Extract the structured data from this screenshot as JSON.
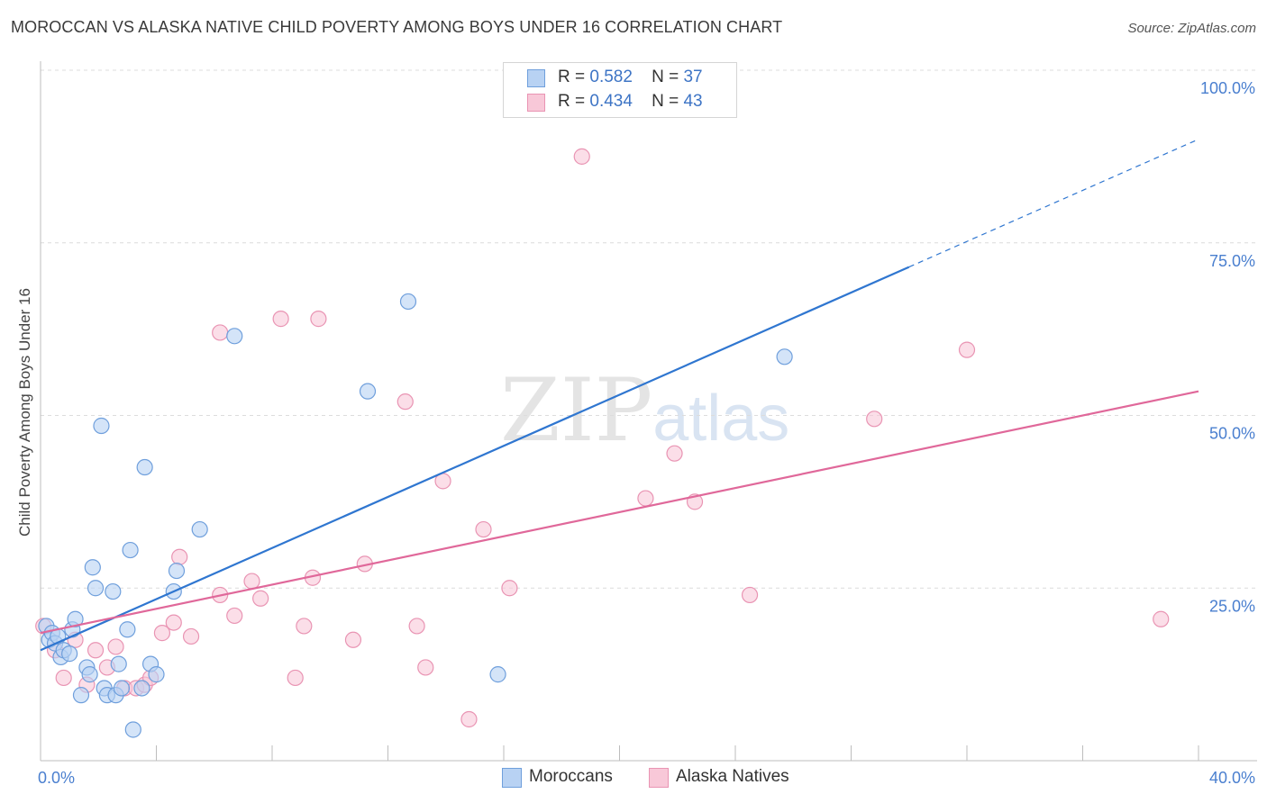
{
  "title": "MOROCCAN VS ALASKA NATIVE CHILD POVERTY AMONG BOYS UNDER 16 CORRELATION CHART",
  "source": "Source: ZipAtlas.com",
  "watermark": {
    "zip": "ZIP",
    "atlas": "atlas"
  },
  "legend_top": {
    "rows": [
      {
        "r_label": "R =",
        "r_value": "0.582",
        "n_label": "N =",
        "n_value": "37"
      },
      {
        "r_label": "R =",
        "r_value": "0.434",
        "n_label": "N =",
        "n_value": "43"
      }
    ]
  },
  "legend_bottom": {
    "moroccans": "Moroccans",
    "alaska": "Alaska Natives"
  },
  "colors": {
    "blue_fill": "#b8d2f3",
    "blue_stroke": "#6f9fdc",
    "blue_line": "#2f76d0",
    "pink_fill": "#f8c8d8",
    "pink_stroke": "#e994b3",
    "pink_line": "#e0689a",
    "tick_text": "#4a7fcf"
  },
  "chart_data": {
    "type": "scatter",
    "title": "MOROCCAN VS ALASKA NATIVE CHILD POVERTY AMONG BOYS UNDER 16 CORRELATION CHART",
    "xlabel": "",
    "ylabel": "Child Poverty Among Boys Under 16",
    "xlim": [
      0,
      40
    ],
    "ylim": [
      0,
      100
    ],
    "x_tick_labels": [
      "0.0%",
      "40.0%"
    ],
    "y_tick_labels": [
      "25.0%",
      "50.0%",
      "75.0%",
      "100.0%"
    ],
    "y_ticks": [
      25,
      50,
      75,
      100
    ],
    "grid": true,
    "legend_placement": "top-center",
    "series": [
      {
        "name": "Moroccans",
        "points": [
          [
            0.2,
            19.5
          ],
          [
            0.3,
            17.5
          ],
          [
            0.4,
            18.5
          ],
          [
            0.5,
            17.0
          ],
          [
            0.6,
            18.0
          ],
          [
            0.7,
            15.0
          ],
          [
            0.8,
            16.0
          ],
          [
            1.0,
            15.5
          ],
          [
            1.1,
            19.0
          ],
          [
            1.2,
            20.5
          ],
          [
            1.4,
            9.5
          ],
          [
            1.6,
            13.5
          ],
          [
            1.7,
            12.5
          ],
          [
            1.8,
            28.0
          ],
          [
            1.9,
            25.0
          ],
          [
            2.1,
            48.5
          ],
          [
            2.2,
            10.5
          ],
          [
            2.3,
            9.5
          ],
          [
            2.5,
            24.5
          ],
          [
            2.6,
            9.5
          ],
          [
            2.7,
            14.0
          ],
          [
            2.8,
            10.5
          ],
          [
            3.0,
            19.0
          ],
          [
            3.1,
            30.5
          ],
          [
            3.2,
            4.5
          ],
          [
            3.5,
            10.5
          ],
          [
            3.6,
            42.5
          ],
          [
            3.8,
            14.0
          ],
          [
            4.0,
            12.5
          ],
          [
            4.6,
            24.5
          ],
          [
            4.7,
            27.5
          ],
          [
            5.5,
            33.5
          ],
          [
            6.7,
            61.5
          ],
          [
            11.3,
            53.5
          ],
          [
            12.7,
            66.5
          ],
          [
            15.8,
            12.5
          ],
          [
            25.7,
            58.5
          ]
        ],
        "trend": {
          "x": [
            0,
            30
          ],
          "y": [
            16.0,
            71.5
          ],
          "dashed_to": {
            "x": 40,
            "y": 90.0
          }
        }
      },
      {
        "name": "Alaska Natives",
        "points": [
          [
            0.1,
            19.5
          ],
          [
            0.5,
            16.0
          ],
          [
            0.8,
            12.0
          ],
          [
            1.2,
            17.5
          ],
          [
            1.6,
            11.0
          ],
          [
            1.9,
            16.0
          ],
          [
            2.3,
            13.5
          ],
          [
            2.6,
            16.5
          ],
          [
            2.9,
            10.5
          ],
          [
            3.3,
            10.5
          ],
          [
            3.6,
            11.0
          ],
          [
            3.8,
            12.0
          ],
          [
            4.2,
            18.5
          ],
          [
            4.6,
            20.0
          ],
          [
            4.8,
            29.5
          ],
          [
            5.2,
            18.0
          ],
          [
            6.2,
            62.0
          ],
          [
            6.2,
            24.0
          ],
          [
            6.7,
            21.0
          ],
          [
            7.3,
            26.0
          ],
          [
            7.6,
            23.5
          ],
          [
            8.3,
            64.0
          ],
          [
            8.8,
            12.0
          ],
          [
            9.1,
            19.5
          ],
          [
            9.4,
            26.5
          ],
          [
            9.6,
            64.0
          ],
          [
            10.8,
            17.5
          ],
          [
            11.2,
            28.5
          ],
          [
            12.6,
            52.0
          ],
          [
            13.0,
            19.5
          ],
          [
            13.3,
            13.5
          ],
          [
            13.9,
            40.5
          ],
          [
            14.8,
            6.0
          ],
          [
            15.3,
            33.5
          ],
          [
            16.2,
            25.0
          ],
          [
            18.7,
            87.5
          ],
          [
            20.9,
            38.0
          ],
          [
            21.9,
            44.5
          ],
          [
            22.6,
            37.5
          ],
          [
            24.5,
            24.0
          ],
          [
            28.8,
            49.5
          ],
          [
            32.0,
            59.5
          ],
          [
            38.7,
            20.5
          ]
        ],
        "trend": {
          "x": [
            0,
            40
          ],
          "y": [
            18.5,
            53.5
          ]
        }
      }
    ]
  }
}
